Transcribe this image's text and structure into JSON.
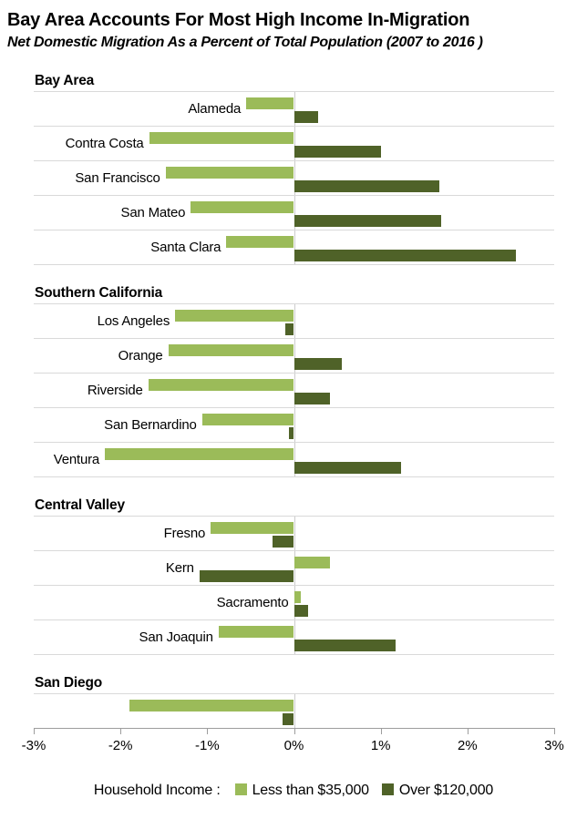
{
  "chart_data": {
    "type": "bar",
    "orientation": "horizontal",
    "title": "Bay Area Accounts For Most High Income In-Migration",
    "subtitle": "Net Domestic Migration As a Percent of Total Population (2007 to 2016 )",
    "xlabel": "",
    "unit": "percent of total population",
    "xlim": [
      -3,
      3
    ],
    "x_tick_labels": [
      "-3%",
      "-2%",
      "-1%",
      "0%",
      "1%",
      "2%",
      "3%"
    ],
    "grid": "horizontal row separators only, vertical zero line per section",
    "legend": {
      "position": "bottom",
      "prefix": "Household Income :"
    },
    "series": [
      {
        "name": "Less than $35,000",
        "color": "#9BBB59"
      },
      {
        "name": "Over $120,000",
        "color": "#4F6228"
      }
    ],
    "sections": [
      {
        "name": "Bay Area",
        "rows": [
          {
            "county": "Alameda",
            "values": [
              -0.55,
              0.28
            ]
          },
          {
            "county": "Contra Costa",
            "values": [
              -1.67,
              1.0
            ]
          },
          {
            "county": "San Francisco",
            "values": [
              -1.48,
              1.68
            ]
          },
          {
            "county": "San Mateo",
            "values": [
              -1.19,
              1.7
            ]
          },
          {
            "county": "Santa Clara",
            "values": [
              -0.78,
              2.56
            ]
          }
        ]
      },
      {
        "name": "Southern California",
        "rows": [
          {
            "county": "Los Angeles",
            "values": [
              -1.37,
              -0.1
            ]
          },
          {
            "county": "Orange",
            "values": [
              -1.45,
              0.55
            ]
          },
          {
            "county": "Riverside",
            "values": [
              -1.68,
              0.41
            ]
          },
          {
            "county": "San Bernardino",
            "values": [
              -1.06,
              -0.06
            ]
          },
          {
            "county": "Ventura",
            "values": [
              -2.18,
              1.23
            ]
          }
        ]
      },
      {
        "name": "Central Valley",
        "rows": [
          {
            "county": "Fresno",
            "values": [
              -0.96,
              -0.25
            ]
          },
          {
            "county": "Kern",
            "values": [
              0.42,
              -1.09
            ]
          },
          {
            "county": "Sacramento",
            "values": [
              0.08,
              0.16
            ]
          },
          {
            "county": "San Joaquin",
            "values": [
              -0.87,
              1.17
            ]
          }
        ]
      },
      {
        "name": "San Diego",
        "rows": [
          {
            "county": "",
            "values": [
              -1.9,
              -0.13
            ]
          }
        ]
      }
    ]
  },
  "colors": {
    "series_light": "#9BBB59",
    "series_dark": "#4F6228",
    "row_divider": "#D9D9D9",
    "zero_line": "#CCCCCC",
    "axis_line": "#9D9D9D",
    "text": "#000000"
  }
}
